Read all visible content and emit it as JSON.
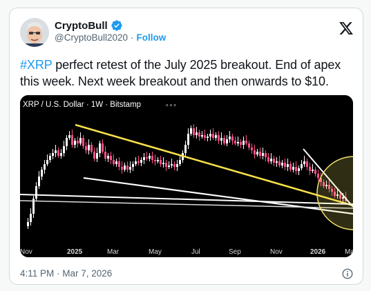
{
  "tweet": {
    "author": {
      "display_name": "CryptoBull",
      "handle": "@CryptoBull2020",
      "separator": "·",
      "follow_label": "Follow",
      "verified_color": "#1d9bf0"
    },
    "text_parts": {
      "hashtag": "#XRP",
      "body": " perfect retest of the July 2025 breakout. End of apex this week. Next week breakout and then onwards to $10."
    },
    "timestamp": "4:11 PM · Mar 7, 2026",
    "icons": [
      "verified-badge-icon",
      "x-logo-icon",
      "info-icon"
    ]
  },
  "chart": {
    "header_label": "XRP / U.S. Dollar · 1W · Bitstamp",
    "menu_dots": "∘∘∘",
    "x_labels": [
      "Nov",
      "2025",
      "Mar",
      "May",
      "Jul",
      "Sep",
      "Nov",
      "2026",
      "Mar"
    ],
    "colors": {
      "background": "#000000",
      "up_candle": "#ffffff",
      "down_candle": "#ff4f8b",
      "trendline_yellow": "#f5e04a",
      "trendline_white": "#ffffff",
      "highlight_circle": "#f2e36b"
    }
  }
}
